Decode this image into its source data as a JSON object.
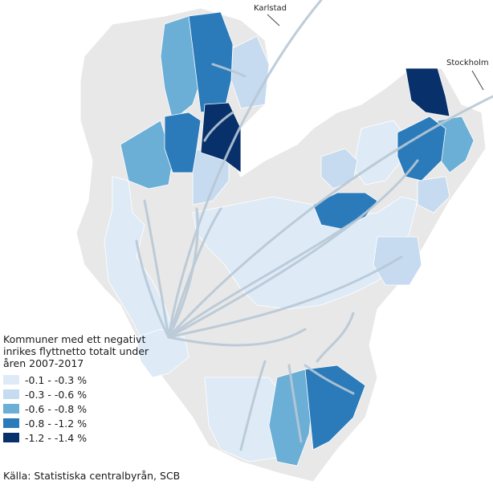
{
  "legend": {
    "title": "Kommuner med ett negativt inrikes flyttnetto totalt under åren 2007-2017",
    "classes": [
      {
        "label": "-0.1 - -0.3 %",
        "color": "#deebf7"
      },
      {
        "label": "-0.3 - -0.6 %",
        "color": "#c6dbef"
      },
      {
        "label": "-0.6 - -0.8 %",
        "color": "#6baed6"
      },
      {
        "label": "-0.8 - -1.2 %",
        "color": "#2b7bba"
      },
      {
        "label": "-1.2  - -1.4 %",
        "color": "#08306b"
      }
    ]
  },
  "destinations": {
    "karlstad": "Karlstad",
    "stockholm": "Stockholm"
  },
  "source": "Källa: Statistiska centralbyrån, SCB",
  "colors": {
    "background_region": "#e8e8e8",
    "water": "#ffffff",
    "flow_arrow": "#b8c8d6"
  }
}
